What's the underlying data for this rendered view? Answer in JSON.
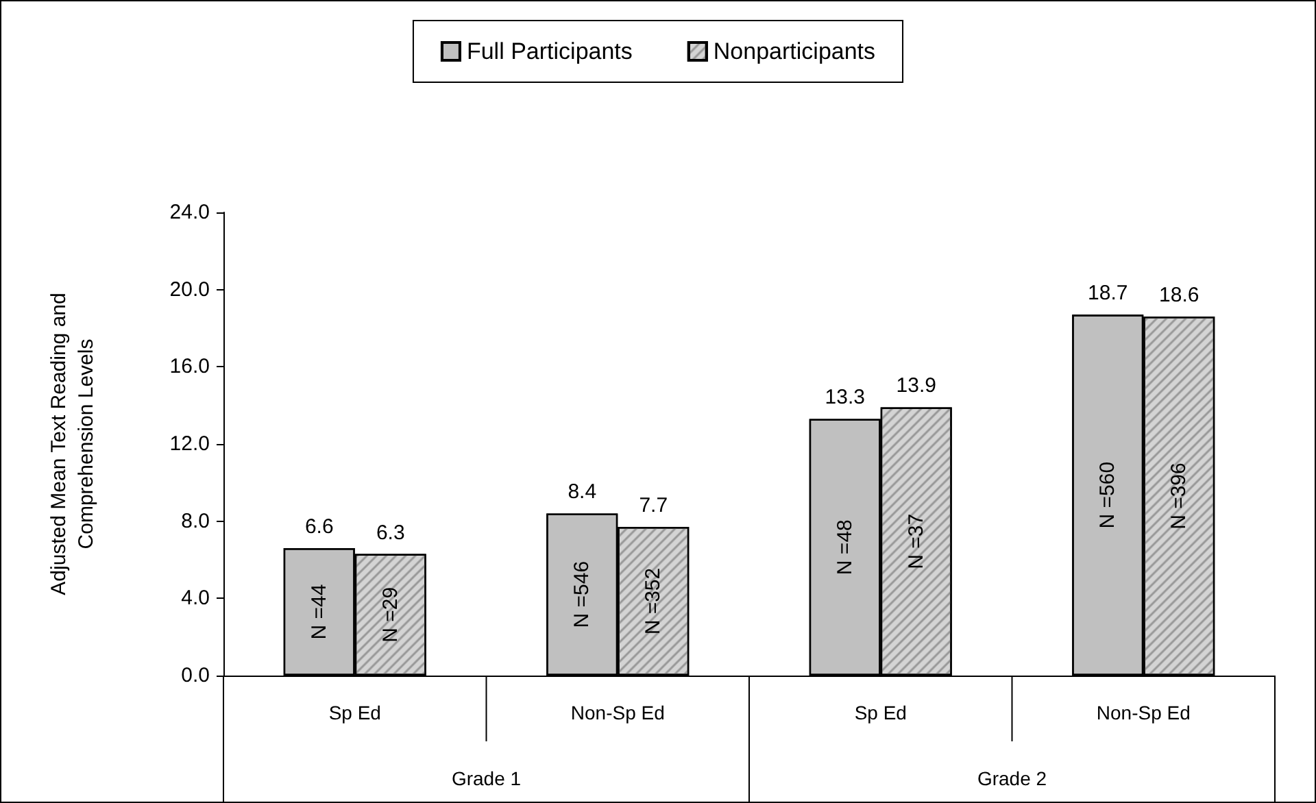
{
  "chart_data": {
    "type": "bar",
    "ylabel": "Adjusted Mean Text Reading and\nComprehension Levels",
    "categories": [
      "Sp Ed",
      "Non-Sp Ed",
      "Sp Ed",
      "Non-Sp Ed"
    ],
    "series": [
      {
        "name": "Full Participants",
        "color": "#c0c0c0",
        "values": [
          6.6,
          8.4,
          13.3,
          18.7
        ]
      },
      {
        "name": "Nonparticipants",
        "color": "#d4d4d4",
        "values": [
          6.3,
          7.7,
          13.9,
          18.6
        ]
      }
    ],
    "ylim": [
      0,
      24
    ],
    "yticks": [
      {
        "value": 0,
        "label": "0.0"
      },
      {
        "value": 4,
        "label": "4.0"
      },
      {
        "value": 8,
        "label": "8.0"
      },
      {
        "value": 12,
        "label": "12.0"
      },
      {
        "value": 16,
        "label": "16.0"
      },
      {
        "value": 20,
        "label": "20.0"
      },
      {
        "value": 24,
        "label": "24.0"
      }
    ],
    "data_labels": true,
    "grid": false,
    "legend": "top",
    "annotations": [
      "Grade 1",
      "Grade 2",
      "N =44",
      "N =546",
      "N =48",
      "N =560",
      "N =29",
      "N =352",
      "N =37",
      "N =396"
    ]
  }
}
